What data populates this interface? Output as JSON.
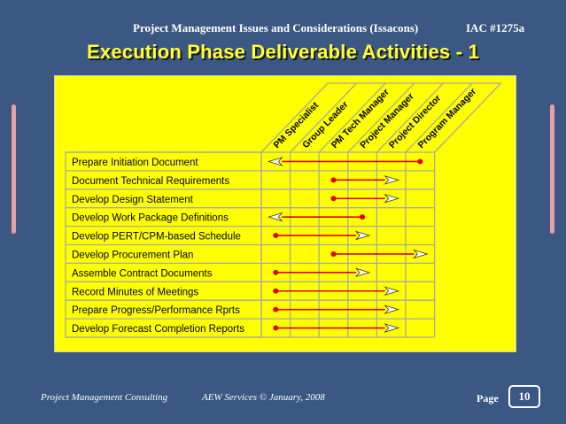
{
  "header": {
    "subject": "Project Management Issues and Considerations (Issacons)",
    "code": "IAC #1275a"
  },
  "title": "Execution Phase Deliverable Activities - 1",
  "matrix": {
    "roles": [
      "PM Specialist",
      "Group Leader",
      "PM Tech Manager",
      "Project Manager",
      "Project Director",
      "Program Manager"
    ],
    "activities": [
      {
        "label": "Prepare Initiation Document",
        "dot_role": 5,
        "arrow_role": 0
      },
      {
        "label": "Document Technical Requirements",
        "dot_role": 2,
        "arrow_role": 4
      },
      {
        "label": "Develop Design Statement",
        "dot_role": 2,
        "arrow_role": 4
      },
      {
        "label": "Develop Work Package Definitions",
        "dot_role": 3,
        "arrow_role": 0
      },
      {
        "label": "Develop PERT/CPM-based Schedule",
        "dot_role": 0,
        "arrow_role": 3
      },
      {
        "label": "Develop Procurement Plan",
        "dot_role": 2,
        "arrow_role": 5
      },
      {
        "label": "Assemble Contract Documents",
        "dot_role": 0,
        "arrow_role": 3
      },
      {
        "label": "Record Minutes of Meetings",
        "dot_role": 0,
        "arrow_role": 4
      },
      {
        "label": "Prepare Progress/Performance Rprts",
        "dot_role": 0,
        "arrow_role": 4
      },
      {
        "label": "Develop Forecast Completion Reports",
        "dot_role": 0,
        "arrow_role": 4
      }
    ],
    "colors": {
      "panel": "#ffff00",
      "grid": "#a8a8a8",
      "line": "#e00000",
      "dot": "#e00000",
      "arrowhead_fill": "#ffffff"
    }
  },
  "footer": {
    "company": "Project Management Consulting",
    "copyright": "AEW Services © January, 2008",
    "page_label": "Page",
    "page_number": "10"
  },
  "colors": {
    "background": "#3a5883",
    "title": "#ffff33",
    "side_bars": "#e8a1a1"
  }
}
